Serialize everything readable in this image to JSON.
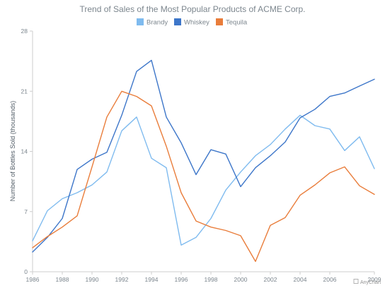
{
  "chart_data": {
    "type": "line",
    "title": "Trend of Sales of the Most Popular Products of ACME Corp.",
    "ylabel": "Number of Bottles Sold (thousands)",
    "xlabel": "",
    "x": [
      1986,
      1987,
      1988,
      1989,
      1990,
      1991,
      1992,
      1993,
      1994,
      1995,
      1996,
      1997,
      1998,
      1999,
      2000,
      2001,
      2002,
      2003,
      2004,
      2005,
      2006,
      2007,
      2008,
      2009
    ],
    "xlim": [
      1986,
      2009
    ],
    "ylim": [
      0,
      28
    ],
    "x_ticks": [
      "1986",
      "1988",
      "1990",
      "1992",
      "1994",
      "1996",
      "1998",
      "2000",
      "2002",
      "2004",
      "2006",
      "2009"
    ],
    "y_ticks": [
      "0",
      "7",
      "14",
      "21",
      "28"
    ],
    "legend_position": "top-center",
    "grid": false,
    "series": [
      {
        "name": "Brandy",
        "color": "#7fbbef",
        "values": [
          3.6,
          7.1,
          8.5,
          9.2,
          10.1,
          11.6,
          16.4,
          18.0,
          13.2,
          12.1,
          3.1,
          4.0,
          6.2,
          9.5,
          11.6,
          13.5,
          14.8,
          16.6,
          18.2,
          17.0,
          16.6,
          14.1,
          15.7,
          12.0
        ]
      },
      {
        "name": "Whiskey",
        "color": "#3d76c9",
        "values": [
          2.3,
          4.0,
          6.2,
          11.9,
          13.1,
          13.9,
          18.2,
          23.3,
          24.6,
          18.0,
          15.0,
          11.3,
          14.2,
          13.7,
          9.9,
          12.1,
          13.5,
          15.1,
          17.9,
          18.9,
          20.4,
          20.8,
          21.6,
          22.4
        ]
      },
      {
        "name": "Tequila",
        "color": "#e97d3b",
        "values": [
          2.8,
          4.1,
          5.2,
          6.5,
          12.2,
          18.0,
          21.0,
          20.4,
          19.3,
          14.6,
          9.2,
          5.9,
          5.2,
          4.8,
          4.2,
          1.2,
          5.4,
          6.3,
          8.9,
          10.1,
          11.5,
          12.2,
          10.0,
          9.0
        ]
      }
    ]
  },
  "credits": "AnyChart"
}
